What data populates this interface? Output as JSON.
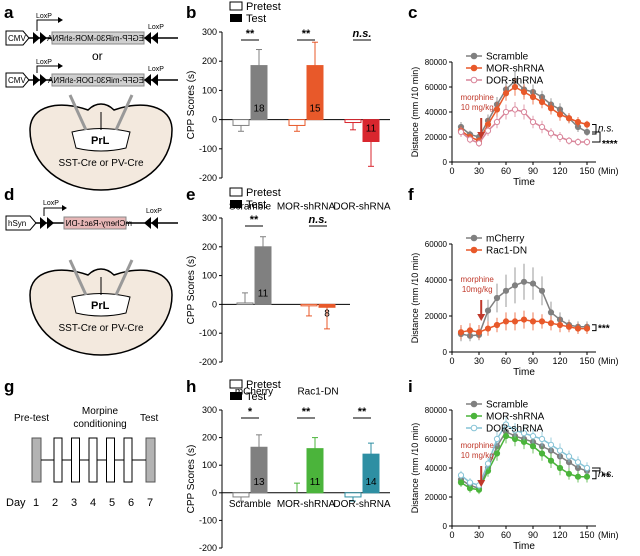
{
  "panel_labels": {
    "a": "a",
    "b": "b",
    "c": "c",
    "d": "d",
    "e": "e",
    "f": "f",
    "g": "g",
    "h": "h",
    "i": "i"
  },
  "construct_a": {
    "promoter": "CMV",
    "loxp": "LoxP",
    "or": "or",
    "insert1": "EGFP-miR30-MOR-shRNA",
    "insert2": "EGFP-miR30-DOR-shRNA",
    "region": "PrL",
    "cre": "SST-Cre or PV-Cre"
  },
  "construct_d": {
    "promoter": "hSyn",
    "loxp": "LoxP",
    "insert": "mCherry-Rac1-DN",
    "region": "PrL",
    "cre": "SST-Cre or PV-Cre"
  },
  "schedule_g": {
    "pretest": "Pre-test",
    "conditioning": "Morpine conditioning",
    "test": "Test",
    "day_label": "Day",
    "days": [
      "1",
      "2",
      "3",
      "4",
      "5",
      "6",
      "7"
    ]
  },
  "legend_bars": {
    "pretest": "Pretest",
    "test": "Test"
  },
  "panel_b": {
    "ylabel": "CPP Scores (s)",
    "yticks": [
      "300",
      "200",
      "100",
      "0",
      "-100",
      "-200"
    ],
    "categories": [
      "Scramble",
      "MOR-shRNA",
      "DOR-shRNA"
    ],
    "n": [
      "18",
      "15",
      "11"
    ],
    "sig": [
      "**",
      "**",
      "n.s."
    ]
  },
  "panel_e": {
    "ylabel": "CPP Scores (s)",
    "yticks": [
      "300",
      "200",
      "100",
      "0",
      "-100",
      "-200"
    ],
    "categories": [
      "mCherry",
      "Rac1-DN"
    ],
    "n": [
      "11",
      "8"
    ],
    "sig": [
      "**",
      "n.s."
    ]
  },
  "panel_h": {
    "ylabel": "CPP Scores (s)",
    "yticks": [
      "300",
      "200",
      "100",
      "0",
      "-100",
      "-200"
    ],
    "categories": [
      "Scramble",
      "MOR-shRNA",
      "DOR-shRNA"
    ],
    "n": [
      "13",
      "11",
      "14"
    ],
    "sig": [
      "*",
      "**",
      "**"
    ]
  },
  "panel_c": {
    "ylabel": "Distance (mm /10 min)",
    "xlabel": "Time",
    "unit": "(Min)",
    "yticks": [
      "80000",
      "60000",
      "40000",
      "20000",
      "0"
    ],
    "xticks": [
      "0",
      "30",
      "60",
      "90",
      "120",
      "150"
    ],
    "legend": [
      "Scramble",
      "MOR-shRNA",
      "DOR-shRNA"
    ],
    "annotation": "morphine\n10 mg/kg",
    "sig": [
      "n.s.",
      "****"
    ]
  },
  "panel_f": {
    "ylabel": "Distance (mm /10 min)",
    "xlabel": "Time",
    "unit": "(Min)",
    "yticks": [
      "60000",
      "40000",
      "20000",
      "0"
    ],
    "xticks": [
      "0",
      "30",
      "60",
      "90",
      "120",
      "150"
    ],
    "legend": [
      "mCherry",
      "Rac1-DN"
    ],
    "annotation": "morphine\n10mg/kg",
    "sig": [
      "***"
    ]
  },
  "panel_i": {
    "ylabel": "Distance (mm /10 min)",
    "xlabel": "Time",
    "unit": "(Min)",
    "yticks": [
      "80000",
      "60000",
      "40000",
      "20000",
      "0"
    ],
    "xticks": [
      "0",
      "30",
      "60",
      "90",
      "120",
      "150"
    ],
    "legend": [
      "Scramble",
      "MOR-shRNA",
      "DOR-shRNA"
    ],
    "annotation": "morphine\n10 mg/kg",
    "sig": [
      "n.s.",
      "**"
    ]
  },
  "colors": {
    "gray": "#808080",
    "orange": "#e8592a",
    "pink": "#d9859a",
    "red": "#d9262e",
    "green": "#4bb43b",
    "teal": "#2e8fa3",
    "lightblue": "#86c3d6",
    "cream": "#f3e9de"
  },
  "chart_data": [
    {
      "type": "bar",
      "id": "b",
      "categories": [
        "Scramble",
        "MOR-shRNA",
        "DOR-shRNA"
      ],
      "ylim": [
        -200,
        300
      ],
      "series": [
        {
          "name": "Pretest",
          "values": [
            -20,
            -20,
            -10
          ],
          "err": [
            20,
            20,
            25
          ]
        },
        {
          "name": "Test",
          "values": [
            185,
            185,
            -75
          ],
          "err": [
            55,
            80,
            85
          ]
        }
      ],
      "colors": [
        "#808080",
        "#e8592a",
        "#d9262e"
      ]
    },
    {
      "type": "line",
      "id": "c",
      "x": [
        10,
        20,
        30,
        40,
        50,
        60,
        70,
        80,
        90,
        100,
        110,
        120,
        130,
        140,
        150
      ],
      "ylim": [
        0,
        80000
      ],
      "series": [
        {
          "name": "Scramble",
          "values": [
            28000,
            22000,
            20000,
            33000,
            46000,
            58000,
            65000,
            58000,
            56000,
            52000,
            46000,
            42000,
            35000,
            28000,
            24000
          ],
          "err": [
            4000,
            3000,
            3000,
            5000,
            6000,
            6000,
            7000,
            6000,
            6000,
            5000,
            5000,
            5000,
            4000,
            4000,
            3000
          ]
        },
        {
          "name": "MOR-shRNA",
          "values": [
            25000,
            20000,
            17000,
            30000,
            42000,
            55000,
            60000,
            56000,
            52000,
            48000,
            43000,
            38000,
            35000,
            32000,
            30000
          ],
          "err": [
            4000,
            3000,
            3000,
            5000,
            6000,
            6000,
            7000,
            6000,
            6000,
            5000,
            5000,
            5000,
            4000,
            4000,
            3000
          ]
        },
        {
          "name": "DOR-shRNA",
          "values": [
            24000,
            18000,
            15000,
            25000,
            32000,
            40000,
            42000,
            40000,
            32000,
            28000,
            23000,
            20000,
            17000,
            16000,
            16000
          ],
          "err": [
            4000,
            3000,
            3000,
            4000,
            5000,
            6000,
            6000,
            6000,
            5000,
            5000,
            4000,
            4000,
            3000,
            3000,
            3000
          ]
        }
      ]
    },
    {
      "type": "bar",
      "id": "e",
      "categories": [
        "mCherry",
        "Rac1-DN"
      ],
      "ylim": [
        -200,
        300
      ],
      "series": [
        {
          "name": "Pretest",
          "values": [
            5,
            -5
          ],
          "err": [
            35,
            35
          ]
        },
        {
          "name": "Test",
          "values": [
            200,
            -10
          ],
          "err": [
            35,
            75
          ]
        }
      ],
      "colors": [
        "#808080",
        "#e8592a"
      ]
    },
    {
      "type": "line",
      "id": "f",
      "x": [
        10,
        20,
        30,
        40,
        50,
        60,
        70,
        80,
        90,
        100,
        110,
        120,
        130,
        140,
        150
      ],
      "ylim": [
        0,
        60000
      ],
      "series": [
        {
          "name": "mCherry",
          "values": [
            10000,
            9000,
            9500,
            23000,
            30000,
            34000,
            37000,
            39000,
            38000,
            34000,
            22000,
            18000,
            15000,
            14000,
            14000
          ],
          "err": [
            4000,
            3000,
            3000,
            6000,
            8000,
            9000,
            10000,
            10000,
            9000,
            8000,
            6000,
            4000,
            3000,
            3000,
            3000
          ]
        },
        {
          "name": "Rac1-DN",
          "values": [
            11000,
            12000,
            11000,
            13000,
            15000,
            17000,
            17000,
            18000,
            17000,
            17000,
            16000,
            15000,
            14000,
            13000,
            13000
          ],
          "err": [
            4000,
            4000,
            4000,
            4000,
            4000,
            5000,
            5000,
            5000,
            5000,
            4000,
            4000,
            4000,
            3000,
            3000,
            3000
          ]
        }
      ]
    },
    {
      "type": "bar",
      "id": "h",
      "categories": [
        "Scramble",
        "MOR-shRNA",
        "DOR-shRNA"
      ],
      "ylim": [
        -200,
        300
      ],
      "series": [
        {
          "name": "Pretest",
          "values": [
            -15,
            0,
            -15
          ],
          "err": [
            15,
            35,
            15
          ]
        },
        {
          "name": "Test",
          "values": [
            165,
            160,
            140
          ],
          "err": [
            45,
            40,
            40
          ]
        }
      ],
      "colors": [
        "#808080",
        "#4bb43b",
        "#2e8fa3"
      ]
    },
    {
      "type": "line",
      "id": "i",
      "x": [
        10,
        20,
        30,
        40,
        50,
        60,
        70,
        80,
        90,
        100,
        110,
        120,
        130,
        140,
        150
      ],
      "ylim": [
        0,
        80000
      ],
      "series": [
        {
          "name": "Scramble",
          "values": [
            32000,
            28000,
            26000,
            40000,
            55000,
            65000,
            62000,
            60000,
            58000,
            55000,
            52000,
            48000,
            44000,
            40000,
            38000
          ],
          "err": [
            3000,
            3000,
            3000,
            4000,
            5000,
            5000,
            5000,
            5000,
            5000,
            5000,
            5000,
            5000,
            4000,
            4000,
            4000
          ]
        },
        {
          "name": "MOR-shRNA",
          "values": [
            30000,
            26000,
            25000,
            38000,
            50000,
            62000,
            60000,
            58000,
            55000,
            50000,
            45000,
            40000,
            36000,
            34000,
            34000
          ],
          "err": [
            3000,
            3000,
            3000,
            4000,
            5000,
            5000,
            5000,
            5000,
            5000,
            5000,
            5000,
            5000,
            4000,
            4000,
            4000
          ]
        },
        {
          "name": "DOR-shRNA",
          "values": [
            35000,
            30000,
            28000,
            43000,
            60000,
            70000,
            66000,
            64000,
            62000,
            60000,
            56000,
            52000,
            48000,
            44000,
            40000
          ],
          "err": [
            3000,
            3000,
            3000,
            4000,
            5000,
            5000,
            5000,
            5000,
            5000,
            5000,
            5000,
            5000,
            4000,
            4000,
            4000
          ]
        }
      ]
    }
  ]
}
